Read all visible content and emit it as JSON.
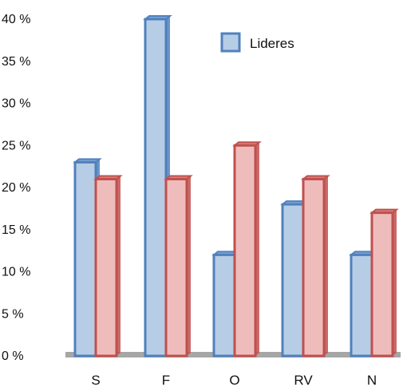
{
  "chart_data": {
    "type": "bar",
    "categories": [
      "S",
      "F",
      "O",
      "RV",
      "N"
    ],
    "series": [
      {
        "name": "Lideres",
        "values": [
          23,
          40,
          12,
          18,
          12
        ],
        "fill": "#b7cde6",
        "stroke": "#4f81bd",
        "top": "#7ea4d2"
      },
      {
        "values": [
          21,
          21,
          25,
          21,
          17
        ],
        "fill": "#efbcbc",
        "stroke": "#c0504d",
        "top": "#d9827f"
      }
    ],
    "ylim": [
      0,
      40
    ],
    "yticks": [
      {
        "value": 0,
        "label": "0 %"
      },
      {
        "value": 5,
        "label": "5 %"
      },
      {
        "value": 10,
        "label": "10 %"
      },
      {
        "value": 15,
        "label": "15 %"
      },
      {
        "value": 20,
        "label": "20 %"
      },
      {
        "value": 25,
        "label": "25 %"
      },
      {
        "value": 30,
        "label": "30 %"
      },
      {
        "value": 35,
        "label": "35 %"
      },
      {
        "value": 40,
        "label": "40 %"
      }
    ],
    "grid": false,
    "legend_position": "top-right",
    "baseline_color": "#a6a6a6"
  }
}
